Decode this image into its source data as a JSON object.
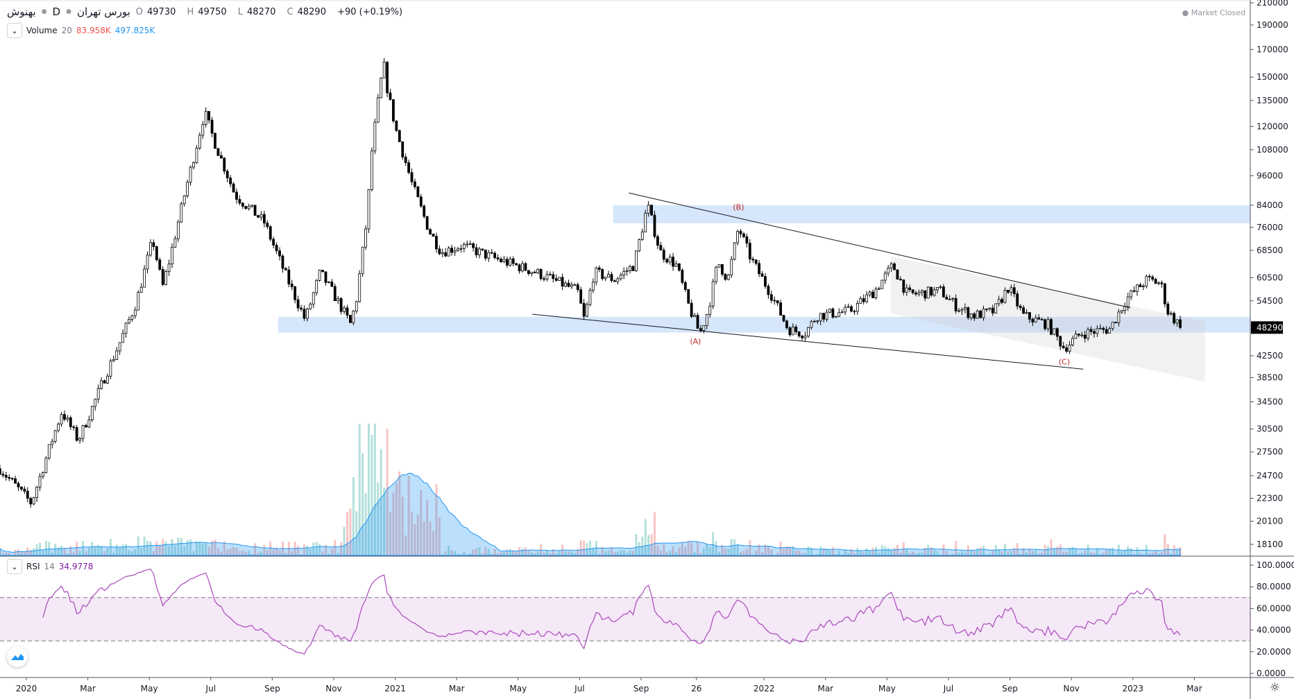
{
  "header": {
    "symbol": "بهنوش",
    "interval": "D",
    "exchange": "بورس تهران",
    "open_label": "O",
    "open": "49730",
    "high_label": "H",
    "high": "49750",
    "low_label": "L",
    "low": "48270",
    "close_label": "C",
    "close": "48290",
    "change": "+90 (+0.19%)",
    "market_status": "Market Closed"
  },
  "volume_legend": {
    "name": "Volume",
    "length": "20",
    "value": "83.958K",
    "ma": "497.825K"
  },
  "rsi_legend": {
    "name": "RSI",
    "length": "14",
    "value": "34.9778"
  },
  "colors": {
    "up_volume": "#26a69a",
    "down_volume": "#ef5350",
    "volume_ma": "#2196f3",
    "rsi": "#ab47bc",
    "zone": "#d6e6fb",
    "last_price_bg": "#000000"
  },
  "chart_data": {
    "type": "candlestick",
    "scale": "log",
    "x_unit": "months since Jan 2020",
    "price_keypoints": [
      [
        -0.86,
        25500
      ],
      [
        0.16,
        21800
      ],
      [
        0.75,
        28000
      ],
      [
        1.15,
        33000
      ],
      [
        1.69,
        29000
      ],
      [
        2.09,
        33000
      ],
      [
        2.5,
        38000
      ],
      [
        3.03,
        45000
      ],
      [
        3.57,
        54000
      ],
      [
        4.11,
        72000
      ],
      [
        4.43,
        58000
      ],
      [
        4.64,
        65000
      ],
      [
        5.18,
        90000
      ],
      [
        5.8,
        128000
      ],
      [
        6.12,
        112000
      ],
      [
        6.79,
        88000
      ],
      [
        7.73,
        78000
      ],
      [
        8.4,
        62000
      ],
      [
        9.07,
        50000
      ],
      [
        9.56,
        62000
      ],
      [
        10.01,
        56000
      ],
      [
        10.55,
        49000
      ],
      [
        10.74,
        55000
      ],
      [
        11.09,
        80000
      ],
      [
        11.22,
        105000
      ],
      [
        11.41,
        130000
      ],
      [
        11.62,
        160000
      ],
      [
        11.76,
        140000
      ],
      [
        12.03,
        118000
      ],
      [
        12.56,
        92000
      ],
      [
        13.1,
        75000
      ],
      [
        13.5,
        68000
      ],
      [
        14.17,
        70000
      ],
      [
        15.25,
        66000
      ],
      [
        16.59,
        62000
      ],
      [
        17.93,
        57000
      ],
      [
        18.15,
        50000
      ],
      [
        18.47,
        62000
      ],
      [
        19.14,
        60000
      ],
      [
        19.76,
        64000
      ],
      [
        20.21,
        84000
      ],
      [
        20.62,
        68000
      ],
      [
        21.15,
        64000
      ],
      [
        21.56,
        53000
      ],
      [
        21.91,
        47000
      ],
      [
        22.17,
        52000
      ],
      [
        22.5,
        65000
      ],
      [
        22.82,
        60000
      ],
      [
        23.17,
        76000
      ],
      [
        23.57,
        66000
      ],
      [
        24.24,
        56000
      ],
      [
        24.78,
        48000
      ],
      [
        25.32,
        47000
      ],
      [
        25.72,
        51000
      ],
      [
        26.79,
        52000
      ],
      [
        27.6,
        57000
      ],
      [
        28.19,
        64000
      ],
      [
        28.67,
        56000
      ],
      [
        29.74,
        57000
      ],
      [
        30.28,
        53000
      ],
      [
        30.82,
        51000
      ],
      [
        31.49,
        52000
      ],
      [
        31.95,
        58000
      ],
      [
        32.43,
        51000
      ],
      [
        33.23,
        49000
      ],
      [
        33.77,
        44000
      ],
      [
        34.31,
        47000
      ],
      [
        35.25,
        48000
      ],
      [
        35.79,
        55000
      ],
      [
        36.46,
        60000
      ],
      [
        36.91,
        59000
      ],
      [
        37.13,
        52000
      ],
      [
        37.58,
        48290
      ]
    ],
    "last_price": 48290,
    "price_axis_ticks": [
      "210000",
      "190000",
      "170000",
      "150000",
      "135000",
      "120000",
      "108000",
      "96000",
      "84000",
      "76000",
      "68500",
      "60500",
      "54500",
      "42500",
      "38500",
      "34500",
      "30500",
      "27500",
      "24700",
      "22300",
      "20100",
      "18100"
    ],
    "rsi_axis_ticks": [
      "100.0000",
      "80.0000",
      "60.0000",
      "40.0000",
      "20.0000",
      "0.0000"
    ],
    "rsi_bands": [
      30,
      70
    ],
    "time_axis_ticks": [
      [
        "2020",
        0
      ],
      [
        "Mar",
        2
      ],
      [
        "May",
        4
      ],
      [
        "Jul",
        6
      ],
      [
        "Sep",
        8
      ],
      [
        "Nov",
        10
      ],
      [
        "2021",
        12
      ],
      [
        "Mar",
        14
      ],
      [
        "May",
        16
      ],
      [
        "Jul",
        18
      ],
      [
        "Sep",
        20
      ],
      [
        "26",
        21.8
      ],
      [
        "2022",
        24
      ],
      [
        "Mar",
        26
      ],
      [
        "May",
        28
      ],
      [
        "Jul",
        30
      ],
      [
        "Sep",
        32
      ],
      [
        "Nov",
        34
      ],
      [
        "2023",
        36
      ],
      [
        "Mar",
        38
      ]
    ],
    "zones": [
      {
        "from_t": 19.09,
        "low": 77400,
        "high": 84000
      },
      {
        "from_t": 8.19,
        "low": 47200,
        "high": 50700
      }
    ],
    "trendlines": [
      [
        [
          19.6,
          88800
        ],
        [
          35.92,
          52800
        ]
      ],
      [
        [
          16.46,
          51300
        ],
        [
          34.39,
          40000
        ]
      ]
    ],
    "channel": [
      [
        28.13,
        66600
      ],
      [
        38.34,
        49700
      ],
      [
        38.34,
        37800
      ],
      [
        28.13,
        51500
      ]
    ],
    "wave_labels": [
      {
        "text": "(A)",
        "t": 21.77,
        "price": 44800
      },
      {
        "text": "(B)",
        "t": 23.17,
        "price": 82300
      },
      {
        "text": "(C)",
        "t": 33.77,
        "price": 40900
      }
    ]
  }
}
